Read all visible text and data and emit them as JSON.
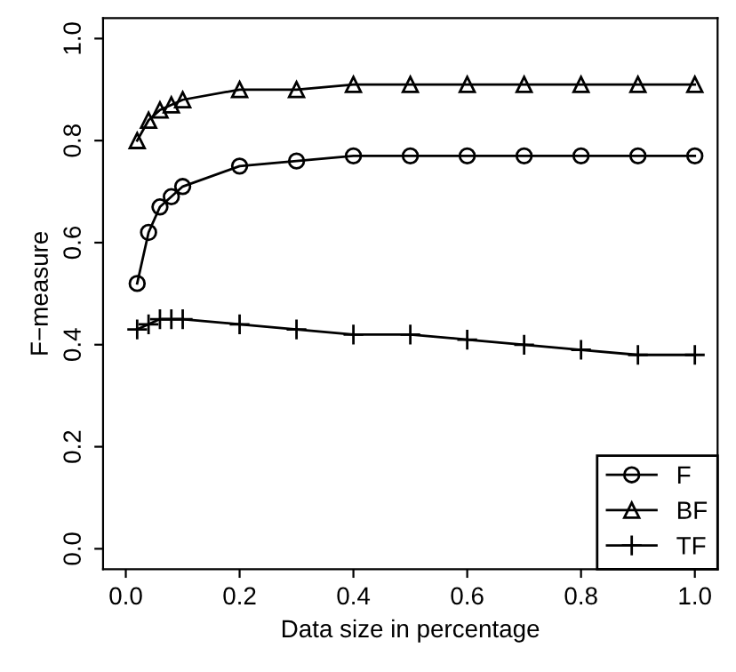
{
  "chart_data": {
    "type": "line",
    "xlabel": "Data size in percentage",
    "ylabel": "F−measure",
    "x": [
      0.02,
      0.04,
      0.06,
      0.08,
      0.1,
      0.2,
      0.3,
      0.4,
      0.5,
      0.6,
      0.7,
      0.8,
      0.9,
      1.0
    ],
    "series": [
      {
        "name": "F",
        "color": "#000000",
        "marker": "circle",
        "values": [
          0.52,
          0.62,
          0.67,
          0.69,
          0.71,
          0.75,
          0.76,
          0.77,
          0.77,
          0.77,
          0.77,
          0.77,
          0.77,
          0.77
        ]
      },
      {
        "name": "BF",
        "color": "#000000",
        "marker": "triangle",
        "values": [
          0.8,
          0.84,
          0.86,
          0.87,
          0.88,
          0.9,
          0.9,
          0.91,
          0.91,
          0.91,
          0.91,
          0.91,
          0.91,
          0.91
        ]
      },
      {
        "name": "TF",
        "color": "#000000",
        "marker": "cross",
        "values": [
          0.43,
          0.44,
          0.45,
          0.45,
          0.45,
          0.44,
          0.43,
          0.42,
          0.42,
          0.41,
          0.4,
          0.39,
          0.38,
          0.38
        ]
      }
    ],
    "xlim": [
      -0.04,
      1.04
    ],
    "ylim": [
      -0.04,
      1.04
    ],
    "xticks": [
      {
        "value": 0,
        "label": "0.0"
      },
      0.2,
      0.4,
      0.6,
      0.8,
      {
        "value": 1,
        "label": "1.0"
      }
    ],
    "yticks": [
      {
        "value": 0,
        "label": "0.0"
      },
      0.2,
      0.4,
      0.6,
      0.8,
      {
        "value": 1,
        "label": "1.0"
      }
    ],
    "grid": false,
    "legend": "bottom right",
    "line_style": "solid"
  }
}
